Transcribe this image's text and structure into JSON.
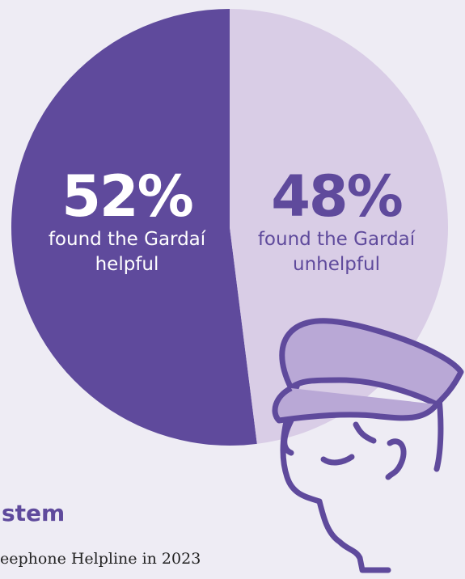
{
  "chart_data": {
    "type": "pie",
    "categories": [
      "found the Gardaí helpful",
      "found the Gardaí unhelpful"
    ],
    "values": [
      52,
      48
    ],
    "value_labels": [
      "52%",
      "48%"
    ],
    "colors": [
      "#5f4a9c",
      "#d9cde6"
    ],
    "label_colors": [
      "#ffffff",
      "#5f4a9c"
    ]
  },
  "page": {
    "heading": "stem",
    "caption": "eephone Helpline in 2023"
  }
}
